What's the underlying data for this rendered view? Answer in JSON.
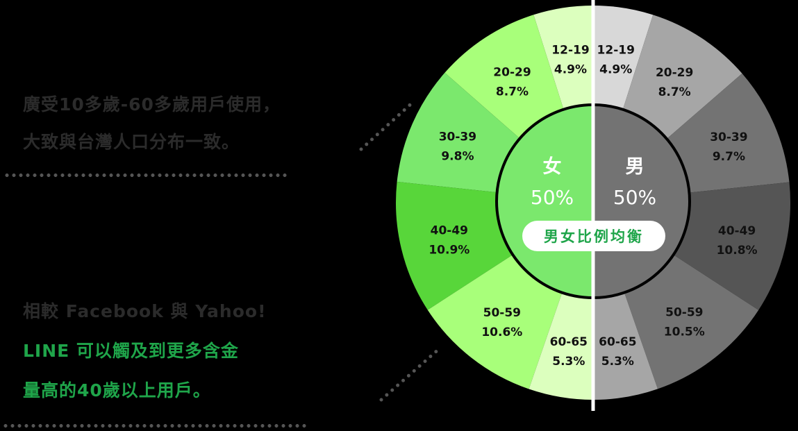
{
  "captions": {
    "block1": {
      "lines": [
        "廣受10多歲-60多歲用戶使用，",
        "大致與台灣人口分布一致。"
      ]
    },
    "block2": {
      "line1": "相較 Facebook 與 Yahoo!",
      "line2": "LINE 可以觸及到更多含金",
      "line3": "量高的40歲以上用戶。"
    }
  },
  "badge": {
    "label": "男女比例均衡"
  },
  "colors": {
    "background": "#000000",
    "accent_green": "#1fa54a",
    "caption_grey": "#2b2b2b",
    "divider": "#ffffff",
    "inner_ring_stroke": "#000000"
  },
  "chart_data": {
    "type": "pie",
    "subtype": "donut-split",
    "title": "",
    "center": {
      "female": {
        "label": "女",
        "value": "50%",
        "color": "#7be86d"
      },
      "male": {
        "label": "男",
        "value": "50%",
        "color": "#737373"
      }
    },
    "categories": [
      "12-19",
      "20-29",
      "30-39",
      "40-49",
      "50-59",
      "60-65"
    ],
    "series": [
      {
        "name": "女",
        "side": "left",
        "values": [
          4.9,
          8.7,
          9.8,
          10.9,
          10.6,
          5.3
        ],
        "labels": [
          "4.9%",
          "8.7%",
          "9.8%",
          "10.9%",
          "10.6%",
          "5.3%"
        ],
        "colors": [
          "#dcffbe",
          "#a8ff7a",
          "#7be86d",
          "#58d63a",
          "#a8ff7a",
          "#dcffbe"
        ]
      },
      {
        "name": "男",
        "side": "right",
        "values": [
          4.9,
          8.7,
          9.7,
          10.8,
          10.5,
          5.3
        ],
        "labels": [
          "4.9%",
          "8.7%",
          "9.7%",
          "10.8%",
          "10.5%",
          "5.3%"
        ],
        "colors": [
          "#d8d8d8",
          "#a6a6a6",
          "#737373",
          "#555555",
          "#737373",
          "#a6a6a6"
        ]
      }
    ],
    "legend": "none",
    "unit": "%"
  }
}
